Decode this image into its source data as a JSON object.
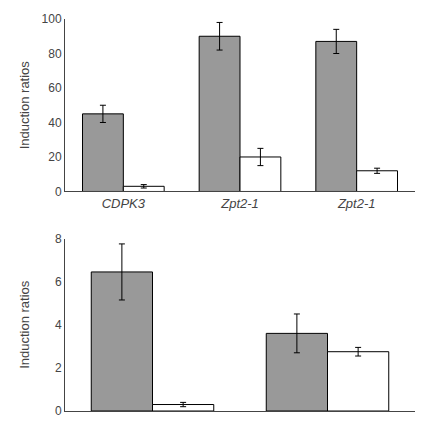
{
  "chart_data": [
    {
      "type": "bar",
      "categories": [
        "CDPK3",
        "Zpt2-1",
        "Zpt2-1"
      ],
      "series": [
        {
          "color": "#999999",
          "values": [
            45,
            90,
            87
          ],
          "errors": [
            5,
            8,
            7
          ]
        },
        {
          "color": "#ffffff",
          "values": [
            3,
            20,
            12
          ],
          "errors": [
            1,
            5,
            1.5
          ]
        }
      ],
      "ylabel": "Induction ratios",
      "ylim": [
        0,
        100
      ],
      "yticks": [
        0,
        20,
        40,
        60,
        80,
        100
      ],
      "grid": false
    },
    {
      "type": "bar",
      "categories": [
        null,
        null
      ],
      "series": [
        {
          "color": "#999999",
          "values": [
            6.45,
            3.6
          ],
          "errors": [
            1.3,
            0.9
          ]
        },
        {
          "color": "#ffffff",
          "values": [
            0.3,
            2.75
          ],
          "errors": [
            0.1,
            0.2
          ]
        }
      ],
      "ylabel": "Induction ratios",
      "ylim": [
        0,
        8
      ],
      "yticks": [
        0,
        2,
        4,
        6,
        8
      ],
      "grid": false,
      "tick_labels": "y"
    }
  ]
}
